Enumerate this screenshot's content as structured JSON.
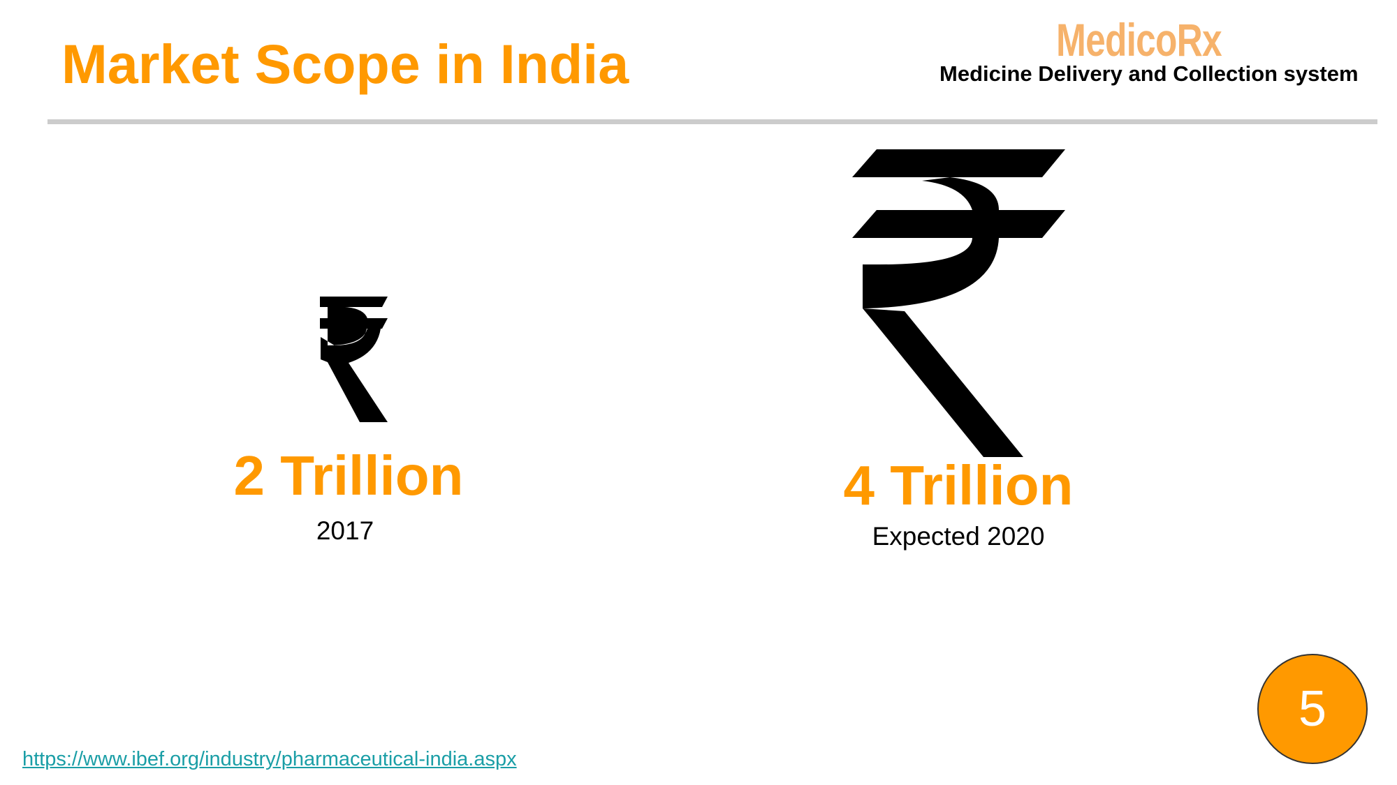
{
  "slide": {
    "title": "Market Scope in India",
    "brand": {
      "name": "MedicoRx",
      "tagline": "Medicine Delivery and Collection system"
    },
    "items": [
      {
        "icon": "rupee-icon",
        "amount": "2 Trillion",
        "label": "2017"
      },
      {
        "icon": "rupee-icon",
        "amount": "4 Trillion",
        "label": "Expected 2020"
      }
    ],
    "source_link": "https://www.ibef.org/industry/pharmaceutical-india.aspx",
    "page_number": "5"
  },
  "colors": {
    "accent": "#ff9900",
    "brand": "#f6b26b",
    "divider": "#cccccc",
    "link": "#1a9ea6",
    "text": "#000000"
  }
}
